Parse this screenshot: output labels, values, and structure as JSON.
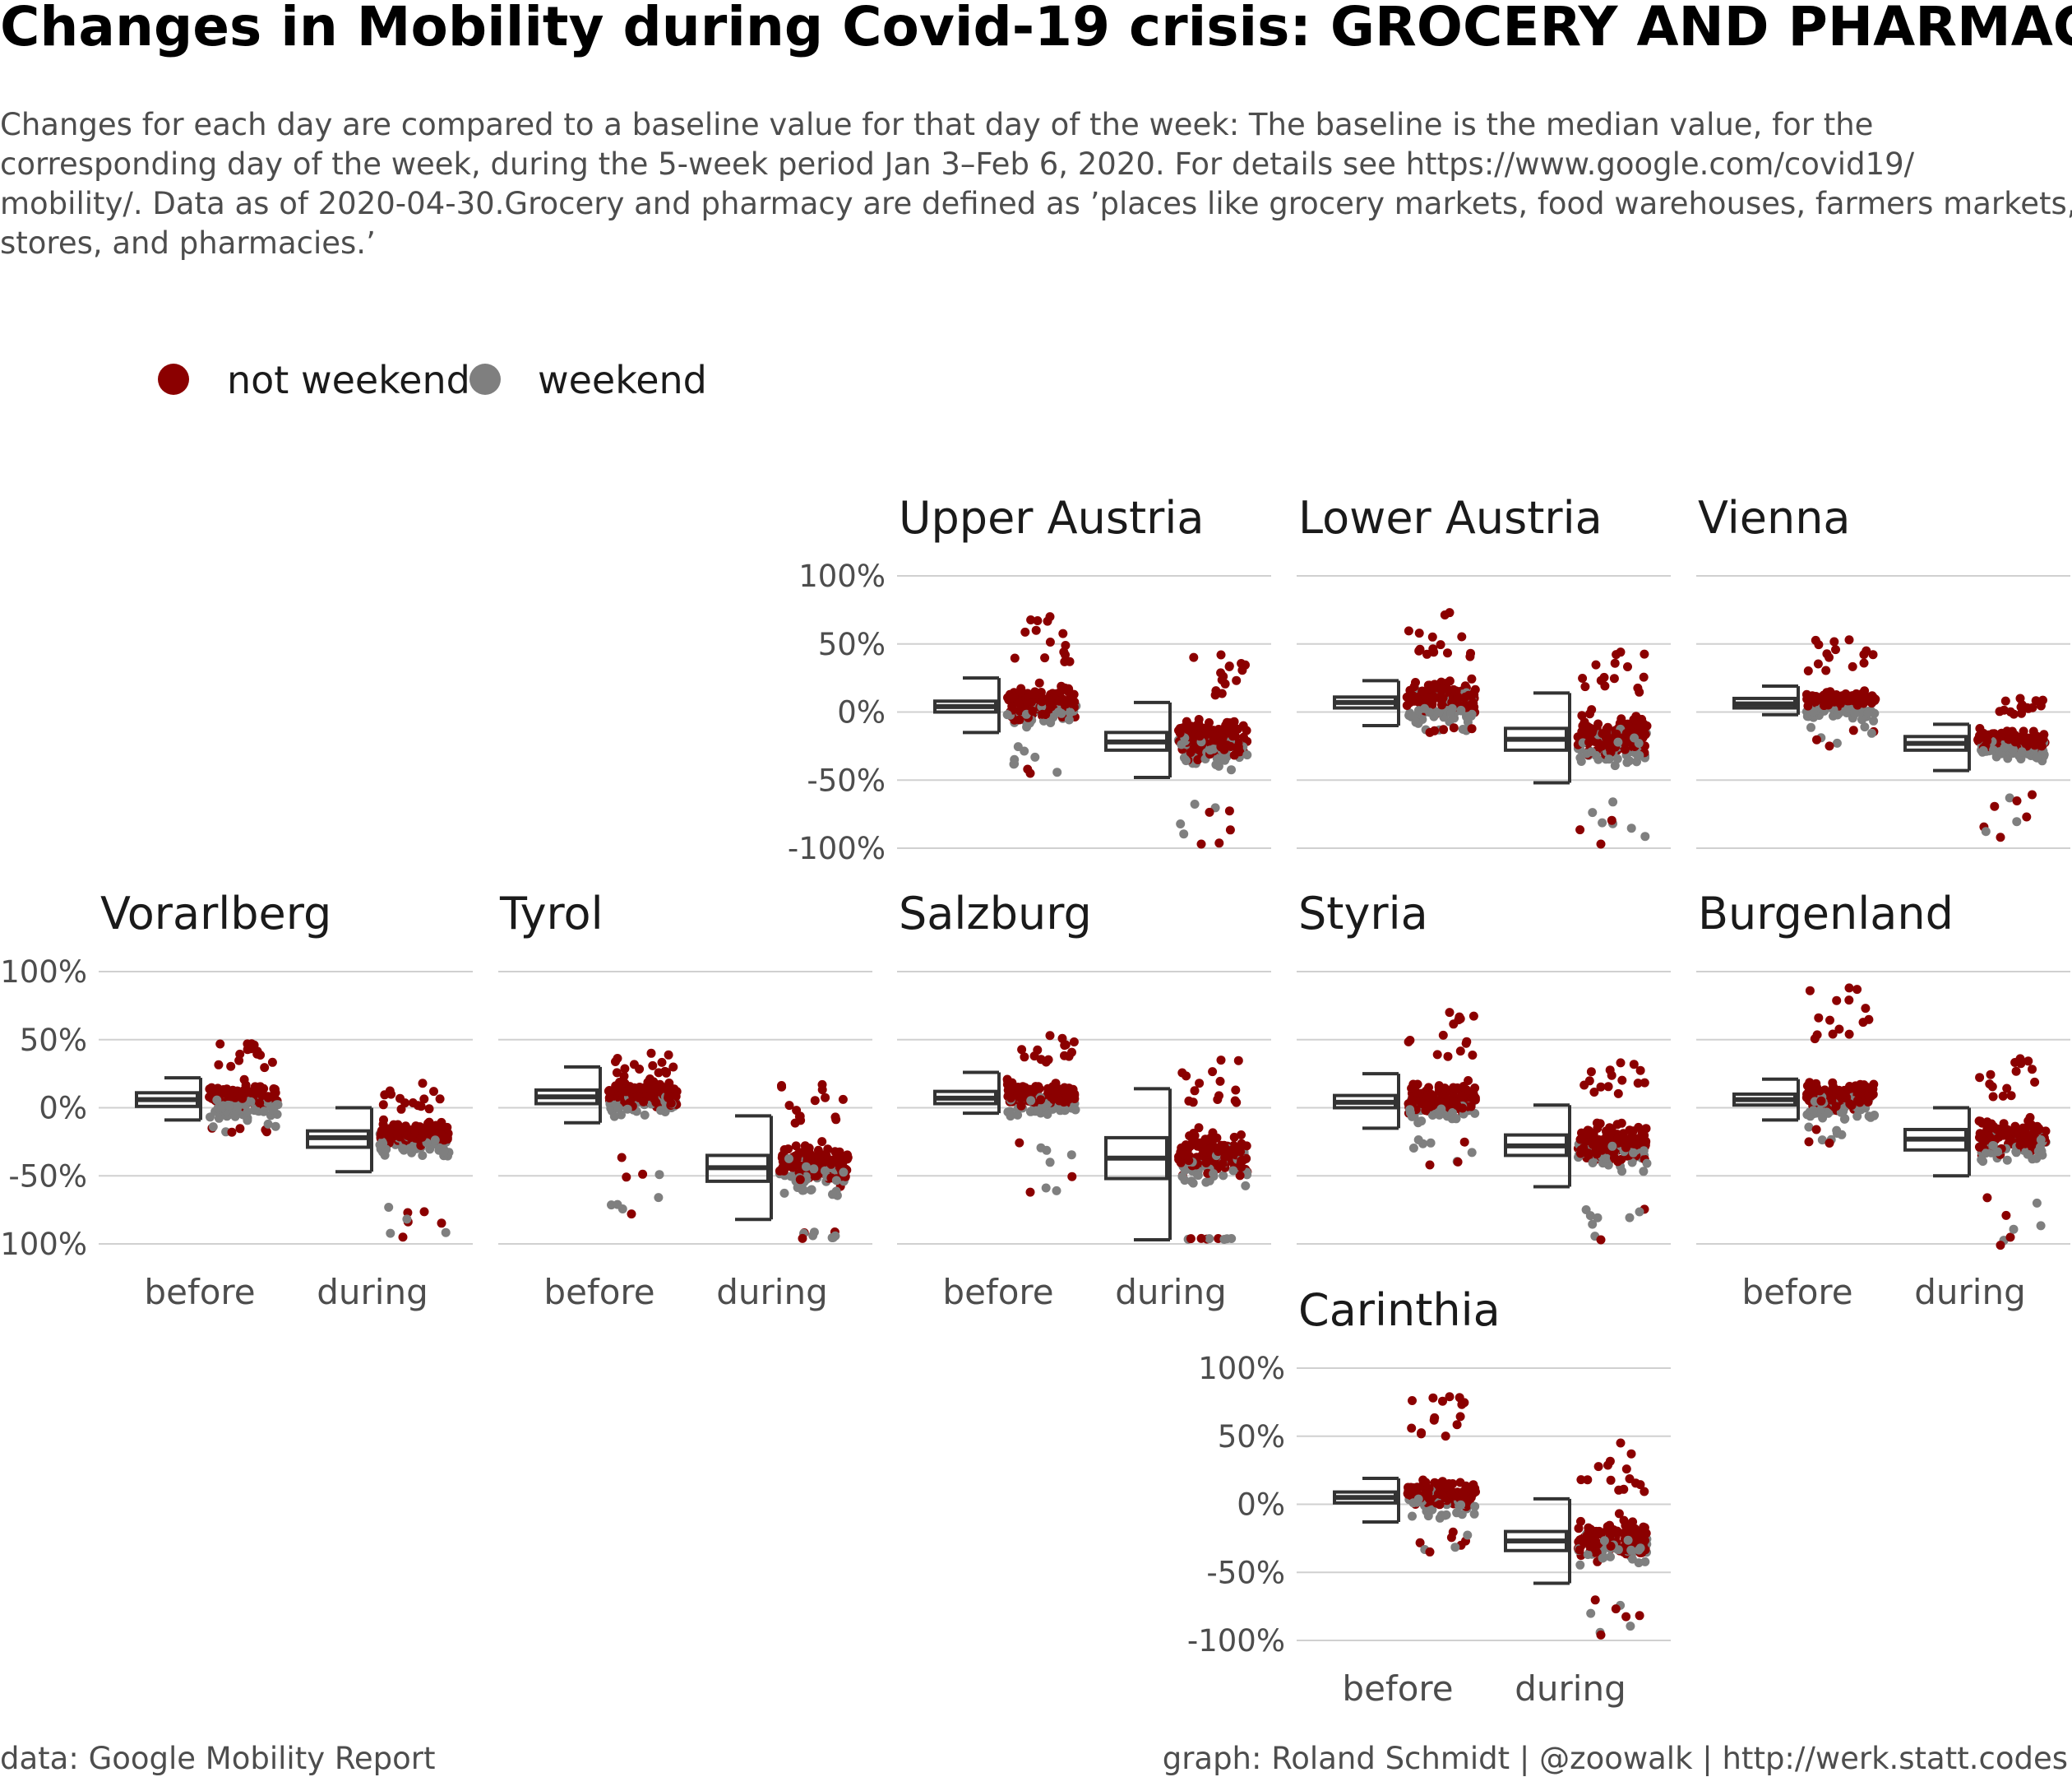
{
  "title": "Changes in Mobility during Covid-19 crisis: GROCERY AND PHARMAC",
  "subtitle_lines": [
    "Changes for each day are compared to a baseline value for that day of the week: The baseline is the median value, for the",
    "corresponding day of the week, during the 5-week period Jan 3–Feb 6, 2020. For details see https://www.google.com/covid19/",
    "mobility/. Data as of 2020-04-30.Grocery and pharmacy are defined as ’places like grocery markets, food warehouses, farmers markets, specia",
    "stores, and pharmacies.’"
  ],
  "caption_left": "data: Google Mobility Report",
  "caption_right": "graph: Roland Schmidt | @zoowalk | http://werk.statt.codes",
  "colors": {
    "not_weekend": "#8b0000",
    "weekend": "#7f7f7f",
    "box": "#333333",
    "grid": "#d0d0d0",
    "text": "#1a1a1a",
    "subtext": "#4d4d4d"
  },
  "legend": [
    {
      "label": "not weekend",
      "color": "#8b0000"
    },
    {
      "label": "weekend",
      "color": "#7f7f7f"
    }
  ],
  "chart_data": {
    "type": "scatter",
    "description_free": true,
    "categories": [
      "before",
      "during"
    ],
    "y_ticks": [
      "100%",
      "50%",
      "0%",
      "-50%",
      "-100%"
    ],
    "ylim": [
      -110,
      110
    ],
    "facets": [
      {
        "name": "Upper Austria",
        "row": 0,
        "col": 2,
        "show_y": true,
        "show_x": false,
        "before": {
          "median": 4,
          "q1": 0,
          "q3": 8,
          "min": -15,
          "max": 25,
          "spread": 18,
          "outlier_low": -45,
          "outlier_high": 70
        },
        "during": {
          "median": -22,
          "q1": -28,
          "q3": -15,
          "min": -48,
          "max": 7,
          "spread": 20,
          "outlier_low": -97,
          "outlier_high": 42
        }
      },
      {
        "name": "Lower Austria",
        "row": 0,
        "col": 3,
        "show_y": false,
        "show_x": false,
        "before": {
          "median": 7,
          "q1": 3,
          "q3": 11,
          "min": -10,
          "max": 23,
          "spread": 18,
          "outlier_low": -15,
          "outlier_high": 73
        },
        "during": {
          "median": -20,
          "q1": -28,
          "q3": -12,
          "min": -52,
          "max": 14,
          "spread": 20,
          "outlier_low": -97,
          "outlier_high": 44
        }
      },
      {
        "name": "Vienna",
        "row": 0,
        "col": 4,
        "show_y": false,
        "show_x": false,
        "before": {
          "median": 6,
          "q1": 3,
          "q3": 10,
          "min": -2,
          "max": 19,
          "spread": 8,
          "outlier_low": -25,
          "outlier_high": 53
        },
        "during": {
          "median": -23,
          "q1": -28,
          "q3": -18,
          "min": -43,
          "max": -9,
          "spread": 9,
          "outlier_low": -92,
          "outlier_high": 10
        }
      },
      {
        "name": "Vorarlberg",
        "row": 1,
        "col": 0,
        "show_y": true,
        "show_x": true,
        "before": {
          "median": 6,
          "q1": 1,
          "q3": 11,
          "min": -9,
          "max": 22,
          "spread": 12,
          "outlier_low": -18,
          "outlier_high": 47
        },
        "during": {
          "median": -22,
          "q1": -29,
          "q3": -17,
          "min": -47,
          "max": 0,
          "spread": 12,
          "outlier_low": -95,
          "outlier_high": 18
        }
      },
      {
        "name": "Tyrol",
        "row": 1,
        "col": 1,
        "show_y": false,
        "show_x": true,
        "before": {
          "median": 8,
          "q1": 3,
          "q3": 13,
          "min": -11,
          "max": 30,
          "spread": 14,
          "outlier_low": -78,
          "outlier_high": 40
        },
        "during": {
          "median": -44,
          "q1": -54,
          "q3": -35,
          "min": -82,
          "max": -6,
          "spread": 20,
          "outlier_low": -96,
          "outlier_high": 17
        }
      },
      {
        "name": "Salzburg",
        "row": 1,
        "col": 2,
        "show_y": false,
        "show_x": true,
        "before": {
          "median": 7,
          "q1": 3,
          "q3": 12,
          "min": -4,
          "max": 26,
          "spread": 12,
          "outlier_low": -62,
          "outlier_high": 53
        },
        "during": {
          "median": -37,
          "q1": -52,
          "q3": -22,
          "min": -97,
          "max": 14,
          "spread": 22,
          "outlier_low": -96,
          "outlier_high": 35
        }
      },
      {
        "name": "Styria",
        "row": 1,
        "col": 3,
        "show_y": false,
        "show_x": false,
        "before": {
          "median": 4,
          "q1": 0,
          "q3": 9,
          "min": -15,
          "max": 25,
          "spread": 15,
          "outlier_low": -42,
          "outlier_high": 70
        },
        "during": {
          "median": -28,
          "q1": -35,
          "q3": -20,
          "min": -58,
          "max": 2,
          "spread": 20,
          "outlier_low": -97,
          "outlier_high": 33
        }
      },
      {
        "name": "Burgenland",
        "row": 1,
        "col": 4,
        "show_y": false,
        "show_x": true,
        "before": {
          "median": 6,
          "q1": 2,
          "q3": 10,
          "min": -9,
          "max": 21,
          "spread": 14,
          "outlier_low": -26,
          "outlier_high": 88
        },
        "during": {
          "median": -23,
          "q1": -31,
          "q3": -16,
          "min": -50,
          "max": 0,
          "spread": 18,
          "outlier_low": -101,
          "outlier_high": 36
        }
      },
      {
        "name": "Carinthia",
        "row": 2,
        "col": 3,
        "show_y": true,
        "show_x": true,
        "before": {
          "median": 5,
          "q1": 1,
          "q3": 9,
          "min": -13,
          "max": 19,
          "spread": 14,
          "outlier_low": -35,
          "outlier_high": 79
        },
        "during": {
          "median": -27,
          "q1": -34,
          "q3": -20,
          "min": -58,
          "max": 4,
          "spread": 18,
          "outlier_low": -96,
          "outlier_high": 45
        }
      }
    ]
  }
}
